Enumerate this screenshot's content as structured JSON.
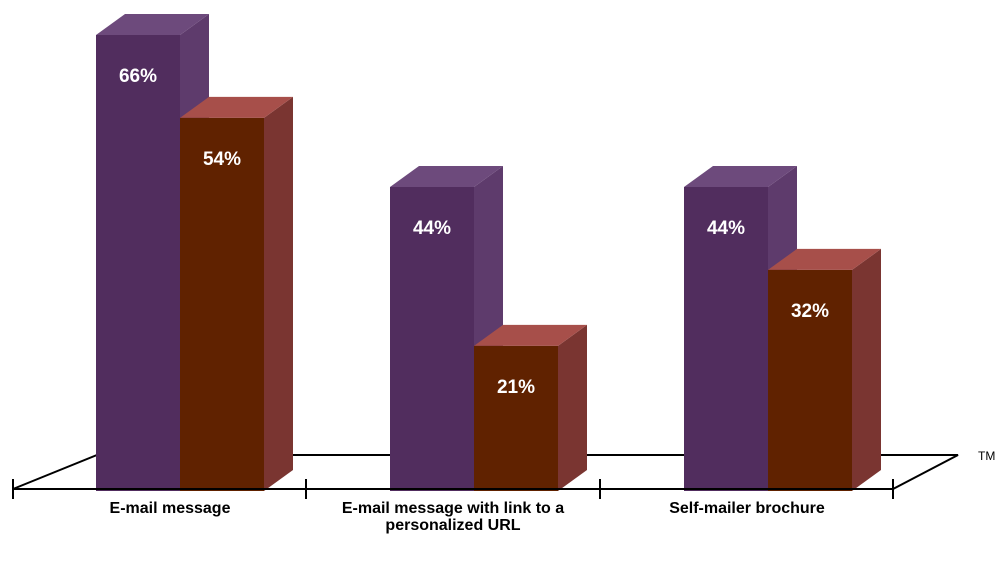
{
  "chart_data": {
    "type": "bar",
    "categories": [
      "E-mail message",
      "E-mail message with link to a personalized URL",
      "Self-mailer brochure"
    ],
    "series": [
      {
        "values": [
          66,
          44,
          44
        ],
        "labels": [
          "66%",
          "44%",
          "44%"
        ]
      },
      {
        "values": [
          54,
          21,
          32
        ],
        "labels": [
          "54%",
          "21%",
          "32%"
        ]
      }
    ],
    "category_label_lines": [
      [
        "E-mail message"
      ],
      [
        "E-mail message with link to a",
        "personalized URL"
      ],
      [
        "Self-mailer brochure"
      ]
    ],
    "tm_text": "TM",
    "colors": {
      "series1_front": "#512d5e",
      "series1_top": "#6d4a7c",
      "series1_side": "#5e3b6c",
      "series2_front": "#602200",
      "series2_top": "#a74f4a",
      "series2_side": "#7a3531"
    }
  }
}
